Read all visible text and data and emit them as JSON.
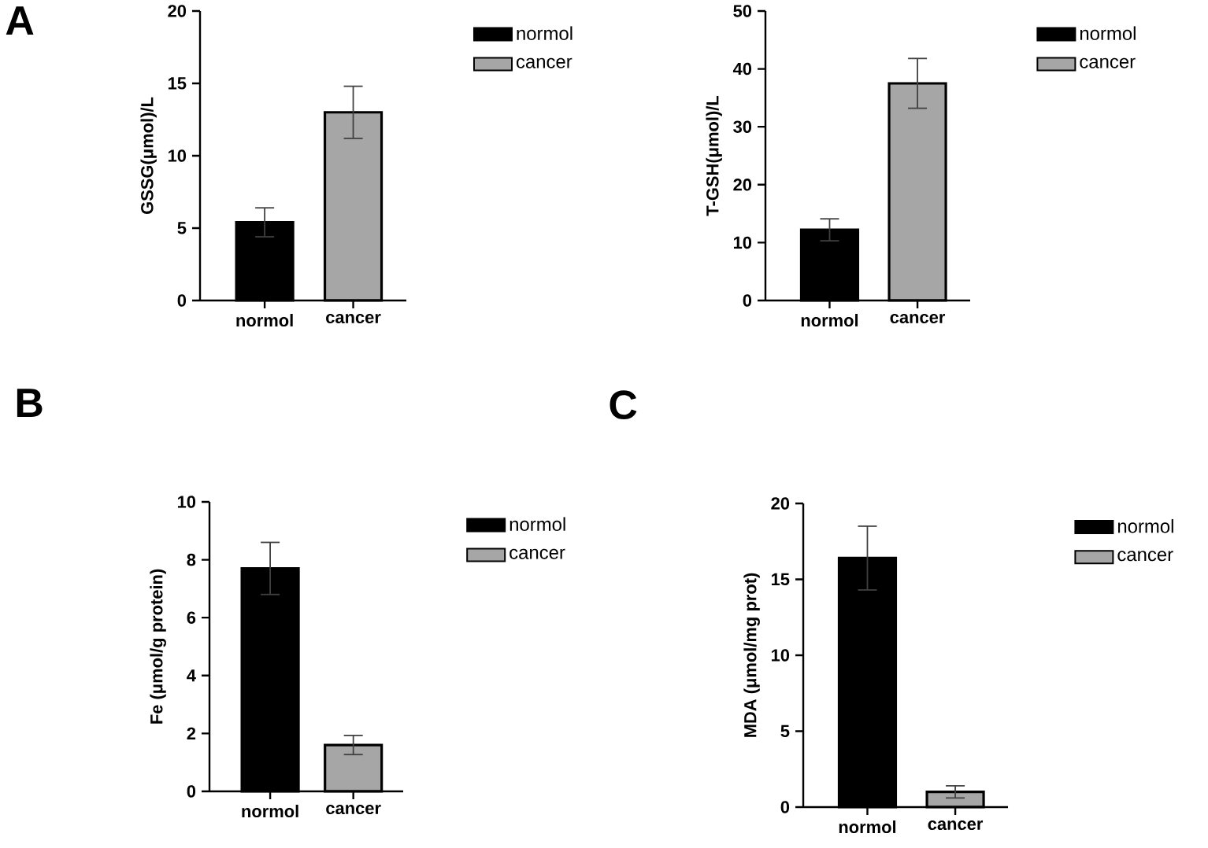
{
  "chart_data": [
    {
      "type": "bar",
      "ylabel": "GSSG(μmol)/L",
      "categories": [
        "normol",
        "cancer"
      ],
      "ylim": [
        0,
        20
      ],
      "yticks": [
        0,
        5,
        10,
        15,
        20
      ],
      "legend": "right",
      "annotations": [
        "A"
      ],
      "series": [
        {
          "name": "normol",
          "color": "#000000",
          "values": [
            5.4,
            null
          ],
          "errors": [
            1.0,
            null
          ]
        },
        {
          "name": "cancer",
          "color": "#a6a6a6",
          "values": [
            null,
            13.0
          ],
          "errors": [
            null,
            1.8
          ]
        }
      ]
    },
    {
      "type": "bar",
      "ylabel": "T-GSH(μmol)/L",
      "categories": [
        "normol",
        "cancer"
      ],
      "ylim": [
        0,
        50
      ],
      "yticks": [
        0,
        10,
        20,
        30,
        40,
        50
      ],
      "legend": "right",
      "series": [
        {
          "name": "normol",
          "color": "#000000",
          "values": [
            12.2,
            null
          ],
          "errors": [
            1.9,
            null
          ]
        },
        {
          "name": "cancer",
          "color": "#a6a6a6",
          "values": [
            null,
            37.5
          ],
          "errors": [
            null,
            4.3
          ]
        }
      ]
    },
    {
      "type": "bar",
      "ylabel": "Fe (μmol/g protein)",
      "categories": [
        "normol",
        "cancer"
      ],
      "ylim": [
        0,
        10
      ],
      "yticks": [
        0,
        2,
        4,
        6,
        8,
        10
      ],
      "legend": "right",
      "annotations": [
        "B"
      ],
      "series": [
        {
          "name": "normol",
          "color": "#000000",
          "values": [
            7.7,
            null
          ],
          "errors": [
            0.9,
            null
          ]
        },
        {
          "name": "cancer",
          "color": "#a6a6a6",
          "values": [
            null,
            1.6
          ],
          "errors": [
            null,
            0.33
          ]
        }
      ]
    },
    {
      "type": "bar",
      "ylabel": "MDA (μmol/mg prot)",
      "categories": [
        "normol",
        "cancer"
      ],
      "ylim": [
        0,
        20
      ],
      "yticks": [
        0,
        5,
        10,
        15,
        20
      ],
      "legend": "right",
      "annotations": [
        "C"
      ],
      "series": [
        {
          "name": "normol",
          "color": "#000000",
          "values": [
            16.4,
            null
          ],
          "errors": [
            2.1,
            null
          ]
        },
        {
          "name": "cancer",
          "color": "#a6a6a6",
          "values": [
            null,
            1.0
          ],
          "errors": [
            null,
            0.4
          ]
        }
      ]
    }
  ]
}
